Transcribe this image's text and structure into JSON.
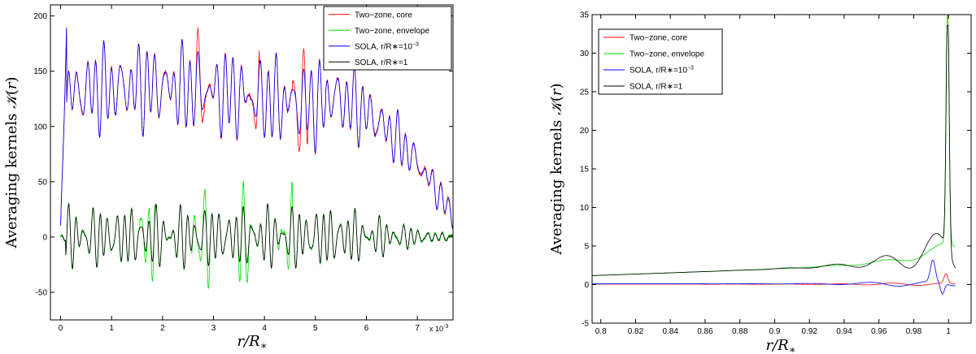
{
  "chart_data": [
    {
      "type": "line",
      "panel": "left",
      "xlabel": "r/R*",
      "ylabel": "Averaging kernels K(r)",
      "xlim": [
        -0.0002,
        0.0077
      ],
      "ylim": [
        -75,
        210
      ],
      "xticks": [
        0,
        0.001,
        0.002,
        0.003,
        0.004,
        0.005,
        0.006,
        0.007
      ],
      "xtick_labels": [
        "0",
        "1",
        "2",
        "3",
        "4",
        "5",
        "6",
        "7"
      ],
      "yticks": [
        -50,
        0,
        50,
        100,
        150,
        200
      ],
      "ytick_labels": [
        "-50",
        "0",
        "50",
        "100",
        "150",
        "200"
      ],
      "x_multiplier": "x 10",
      "x_multiplier_exp": "-3",
      "legend_position": "top-right",
      "series": [
        {
          "name": "Two−zone, core",
          "legend_main": "Two−zone, core",
          "legend_sup": "",
          "color": "#ff0000",
          "style": "solid"
        },
        {
          "name": "Two−zone, envelope",
          "legend_main": "Two−zone, envelope",
          "legend_sup": "",
          "color": "#00dd00",
          "style": "solid"
        },
        {
          "name": "SOLA, r/R*=10^-3",
          "legend_main": "SOLA, r/R∗=10",
          "legend_sup": "−3",
          "color": "#0000ff",
          "style": "solid"
        },
        {
          "name": "SOLA, r/R*=1",
          "legend_main": "SOLA, r/R∗=1",
          "legend_sup": "",
          "color": "#000000",
          "style": "solid"
        }
      ]
    },
    {
      "type": "line",
      "panel": "right",
      "xlabel": "r/R*",
      "ylabel": "Averaging kernels K(r)",
      "xlim": [
        0.795,
        1.013
      ],
      "ylim": [
        -5,
        35
      ],
      "xticks": [
        0.8,
        0.82,
        0.84,
        0.86,
        0.88,
        0.9,
        0.92,
        0.94,
        0.96,
        0.98,
        1.0
      ],
      "xtick_labels": [
        "0.8",
        "0.82",
        "0.84",
        "0.86",
        "0.88",
        "0.9",
        "0.92",
        "0.94",
        "0.96",
        "0.98",
        "1"
      ],
      "yticks": [
        -5,
        0,
        5,
        10,
        15,
        20,
        25,
        30,
        35
      ],
      "ytick_labels": [
        "-5",
        "0",
        "5",
        "10",
        "15",
        "20",
        "25",
        "30",
        "35"
      ],
      "legend_position": "top-left",
      "series": [
        {
          "name": "Two−zone, core",
          "legend_main": "Two−zone, core",
          "legend_sup": "",
          "color": "#ff0000",
          "style": "solid"
        },
        {
          "name": "Two−zone, envelope",
          "legend_main": "Two−zone, envelope",
          "legend_sup": "",
          "color": "#00dd00",
          "style": "solid"
        },
        {
          "name": "SOLA, r/R*=10^-3",
          "legend_main": "SOLA, r/R∗=10",
          "legend_sup": "−3",
          "color": "#0000ff",
          "style": "solid"
        },
        {
          "name": "SOLA, r/R*=1",
          "legend_main": "SOLA, r/R∗=1",
          "legend_sup": "",
          "color": "#000000",
          "style": "solid"
        }
      ]
    }
  ]
}
